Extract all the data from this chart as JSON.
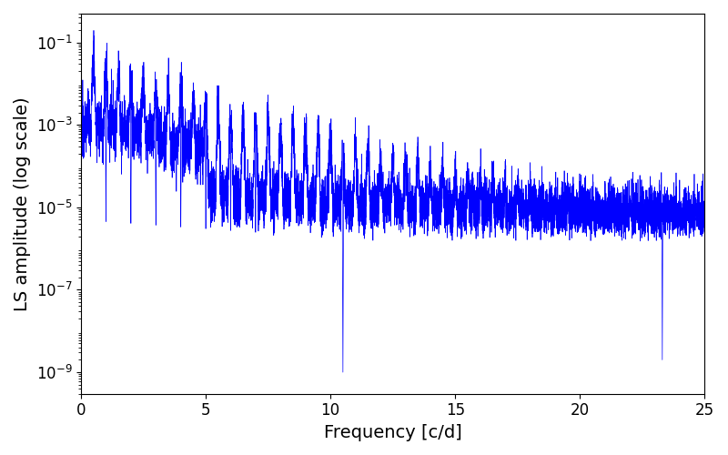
{
  "xlabel": "Frequency [c/d]",
  "ylabel": "LS amplitude (log scale)",
  "line_color": "blue",
  "xlim": [
    0,
    25
  ],
  "ylim_low": 3e-10,
  "ylim_high": 0.5,
  "figsize": [
    8.0,
    5.0
  ],
  "dpi": 100,
  "seed": 12345,
  "n_points": 8000,
  "freq_max": 25.0,
  "tick_label_size": 12,
  "axis_label_size": 14,
  "background_color": "#ffffff",
  "null_freq_1": 10.5,
  "null_freq_2": 23.3,
  "null_depth_1": 1e-09,
  "null_depth_2": 2e-09,
  "low_freq_cutoff": 5.0,
  "mid_freq_cutoff": 13.0
}
